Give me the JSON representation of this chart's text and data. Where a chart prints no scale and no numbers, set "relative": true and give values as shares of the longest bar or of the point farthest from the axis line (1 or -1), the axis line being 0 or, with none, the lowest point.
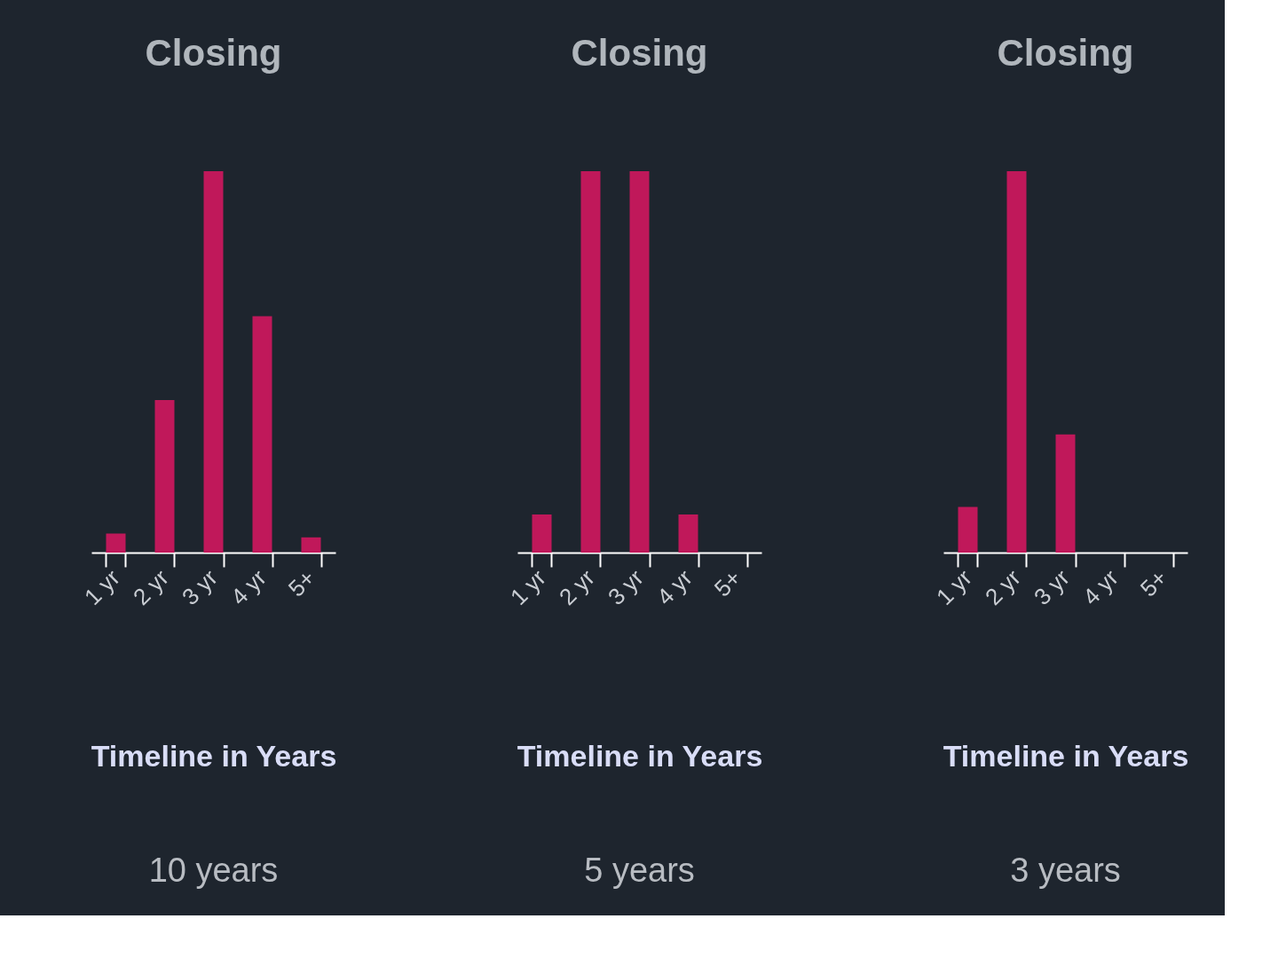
{
  "chart_data": [
    {
      "type": "bar",
      "title": "Closing",
      "xlabel": "Timeline in Years",
      "annotations": [
        "10 years"
      ],
      "relative": true,
      "categories": [
        "1 yr",
        "2 yr",
        "3 yr",
        "4 yr",
        "5+"
      ],
      "series": [
        {
          "color": "#c0185a",
          "values": [
            0.05,
            0.4,
            1,
            0.62,
            0.04
          ]
        }
      ]
    },
    {
      "type": "bar",
      "title": "Closing",
      "xlabel": "Timeline in Years",
      "annotations": [
        "5 years"
      ],
      "relative": true,
      "categories": [
        "1 yr",
        "2 yr",
        "3 yr",
        "4 yr",
        "5+"
      ],
      "series": [
        {
          "color": "#c0185a",
          "values": [
            0.1,
            1,
            1,
            0.1,
            0
          ]
        }
      ]
    },
    {
      "type": "bar",
      "title": "Closing",
      "xlabel": "Timeline in Years",
      "annotations": [
        "3 years"
      ],
      "relative": true,
      "categories": [
        "1 yr",
        "2 yr",
        "3 yr",
        "4 yr",
        "5+"
      ],
      "series": [
        {
          "color": "#c0185a",
          "values": [
            0.12,
            1,
            0.31,
            0,
            0
          ]
        }
      ]
    }
  ]
}
